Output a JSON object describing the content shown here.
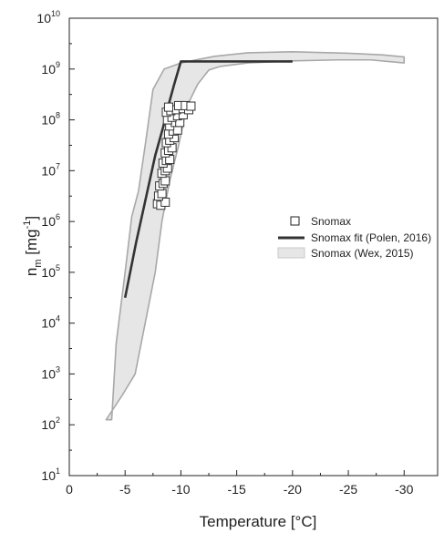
{
  "chart_data": {
    "type": "scatter",
    "xlabel": "Temperature [°C]",
    "ylabel": {
      "base": "n",
      "sub": "m",
      "unit_prefix": " [mg",
      "unit_sup": "-1",
      "unit_suffix": "]"
    },
    "xlim": [
      0,
      -33
    ],
    "ylim_log10": [
      1,
      10
    ],
    "y_scale": "log",
    "x_ticks": [
      "0",
      "-5",
      "-10",
      "-15",
      "-20",
      "-25",
      "-30"
    ],
    "x_tick_values": [
      0,
      -5,
      -10,
      -15,
      -20,
      -25,
      -30
    ],
    "y_ticks": [
      {
        "base": "10",
        "exp": "1",
        "v": 1
      },
      {
        "base": "10",
        "exp": "2",
        "v": 2
      },
      {
        "base": "10",
        "exp": "3",
        "v": 3
      },
      {
        "base": "10",
        "exp": "4",
        "v": 4
      },
      {
        "base": "10",
        "exp": "5",
        "v": 5
      },
      {
        "base": "10",
        "exp": "6",
        "v": 6
      },
      {
        "base": "10",
        "exp": "7",
        "v": 7
      },
      {
        "base": "10",
        "exp": "8",
        "v": 8
      },
      {
        "base": "10",
        "exp": "9",
        "v": 9
      },
      {
        "base": "10",
        "exp": "10",
        "v": 10
      }
    ],
    "grid": false,
    "legend_position": "right-middle",
    "series": [
      {
        "name": "Snomax (Wex, 2015)",
        "kind": "band",
        "fill": "#e6e6e6",
        "stroke": "#a8a8a8",
        "upper": [
          [
            -3.8,
            2.1
          ],
          [
            -4.2,
            3.6
          ],
          [
            -5.0,
            5.0
          ],
          [
            -5.6,
            6.1
          ],
          [
            -6.2,
            6.6
          ],
          [
            -6.8,
            7.5
          ],
          [
            -7.5,
            8.6
          ],
          [
            -8.5,
            9.0
          ],
          [
            -10,
            9.12
          ],
          [
            -13,
            9.25
          ],
          [
            -16,
            9.32
          ],
          [
            -20,
            9.34
          ],
          [
            -25,
            9.31
          ],
          [
            -28,
            9.28
          ],
          [
            -30,
            9.24
          ]
        ],
        "lower": [
          [
            -30,
            9.12
          ],
          [
            -27,
            9.18
          ],
          [
            -24,
            9.18
          ],
          [
            -20,
            9.16
          ],
          [
            -16,
            9.12
          ],
          [
            -13.5,
            9.05
          ],
          [
            -12.5,
            8.98
          ],
          [
            -11.5,
            8.7
          ],
          [
            -10.5,
            8.25
          ],
          [
            -9.8,
            7.5
          ],
          [
            -9.0,
            6.8
          ],
          [
            -8.3,
            6.0
          ],
          [
            -7.7,
            5.0
          ],
          [
            -6.8,
            4.0
          ],
          [
            -5.9,
            3.0
          ],
          [
            -4.8,
            2.6
          ],
          [
            -3.3,
            2.1
          ]
        ]
      },
      {
        "name": "Snomax fit (Polen, 2016)",
        "kind": "line",
        "color": "#333333",
        "points": [
          [
            -5.0,
            4.5
          ],
          [
            -6.0,
            5.6
          ],
          [
            -6.9,
            6.5
          ],
          [
            -7.7,
            7.3
          ],
          [
            -8.4,
            7.85
          ],
          [
            -8.9,
            8.3
          ],
          [
            -9.4,
            8.7
          ],
          [
            -10.0,
            9.15
          ],
          [
            -15,
            9.15
          ],
          [
            -20,
            9.15
          ]
        ]
      },
      {
        "name": "Snomax",
        "kind": "markers",
        "marker": "open-square",
        "points": [
          [
            -7.9,
            6.35
          ],
          [
            -8.2,
            6.32
          ],
          [
            -8.6,
            6.38
          ],
          [
            -8.0,
            6.5
          ],
          [
            -8.3,
            6.55
          ],
          [
            -8.1,
            6.7
          ],
          [
            -8.4,
            6.75
          ],
          [
            -8.6,
            6.8
          ],
          [
            -8.3,
            6.95
          ],
          [
            -8.6,
            7.0
          ],
          [
            -8.8,
            7.05
          ],
          [
            -8.4,
            7.15
          ],
          [
            -8.7,
            7.2
          ],
          [
            -9.0,
            7.22
          ],
          [
            -8.6,
            7.35
          ],
          [
            -8.9,
            7.4
          ],
          [
            -9.2,
            7.45
          ],
          [
            -8.7,
            7.55
          ],
          [
            -9.0,
            7.6
          ],
          [
            -9.4,
            7.65
          ],
          [
            -8.9,
            7.72
          ],
          [
            -9.3,
            7.78
          ],
          [
            -9.7,
            7.8
          ],
          [
            -9.0,
            7.88
          ],
          [
            -9.5,
            7.95
          ],
          [
            -9.9,
            7.95
          ],
          [
            -8.8,
            8.0
          ],
          [
            -9.2,
            8.05
          ],
          [
            -9.7,
            8.08
          ],
          [
            -10.2,
            8.1
          ],
          [
            -8.7,
            8.15
          ],
          [
            -9.1,
            8.18
          ],
          [
            -9.6,
            8.2
          ],
          [
            -10.2,
            8.22
          ],
          [
            -10.7,
            8.2
          ],
          [
            -8.9,
            8.25
          ],
          [
            -9.8,
            8.28
          ],
          [
            -10.4,
            8.28
          ],
          [
            -10.9,
            8.27
          ]
        ]
      }
    ]
  }
}
